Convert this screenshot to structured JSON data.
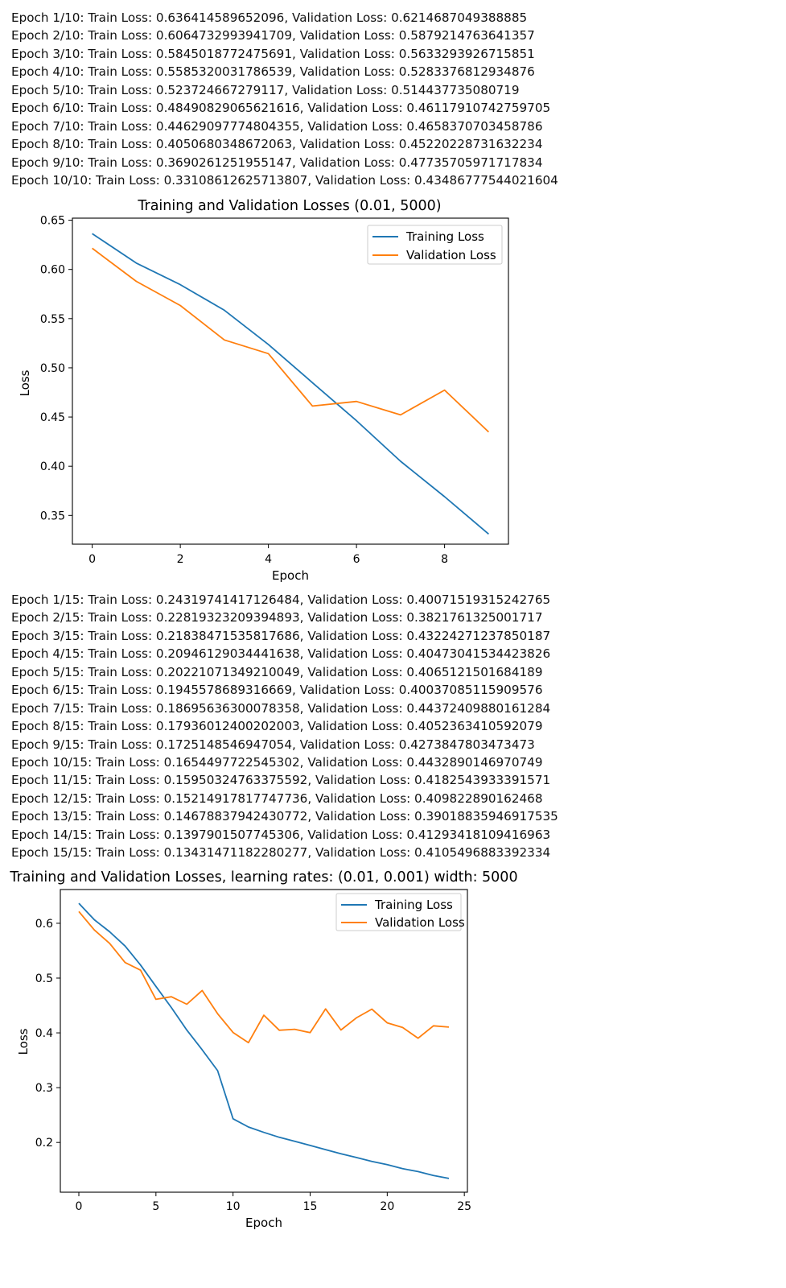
{
  "logs": [
    {
      "lines": [
        "Epoch 1/10: Train Loss: 0.636414589652096, Validation Loss: 0.6214687049388885",
        "Epoch 2/10: Train Loss: 0.6064732993941709, Validation Loss: 0.5879214763641357",
        "Epoch 3/10: Train Loss: 0.5845018772475691, Validation Loss: 0.5633293926715851",
        "Epoch 4/10: Train Loss: 0.5585320031786539, Validation Loss: 0.5283376812934876",
        "Epoch 5/10: Train Loss: 0.523724667279117, Validation Loss: 0.514437735080719",
        "Epoch 6/10: Train Loss: 0.48490829065621616, Validation Loss: 0.46117910742759705",
        "Epoch 7/10: Train Loss: 0.44629097774804355, Validation Loss: 0.4658370703458786",
        "Epoch 8/10: Train Loss: 0.4050680348672063, Validation Loss: 0.45220228731632234",
        "Epoch 9/10: Train Loss: 0.3690261251955147, Validation Loss: 0.47735705971717834",
        "Epoch 10/10: Train Loss: 0.33108612625713807, Validation Loss: 0.43486777544021604"
      ]
    },
    {
      "lines": [
        "Epoch 1/15: Train Loss: 0.24319741417126484, Validation Loss: 0.40071519315242765",
        "Epoch 2/15: Train Loss: 0.22819323209394893, Validation Loss: 0.3821761325001717",
        "Epoch 3/15: Train Loss: 0.21838471535817686, Validation Loss: 0.43224271237850187",
        "Epoch 4/15: Train Loss: 0.20946129034441638, Validation Loss: 0.40473041534423826",
        "Epoch 5/15: Train Loss: 0.20221071349210049, Validation Loss: 0.4065121501684189",
        "Epoch 6/15: Train Loss: 0.1945578689316669, Validation Loss: 0.40037085115909576",
        "Epoch 7/15: Train Loss: 0.18695636300078358, Validation Loss: 0.44372409880161284",
        "Epoch 8/15: Train Loss: 0.17936012400202003, Validation Loss: 0.4052363410592079",
        "Epoch 9/15: Train Loss: 0.1725148546947054, Validation Loss: 0.4273847803473473",
        "Epoch 10/15: Train Loss: 0.1654497722545302, Validation Loss: 0.4432890146970749",
        "Epoch 11/15: Train Loss: 0.15950324763375592, Validation Loss: 0.4182543933391571",
        "Epoch 12/15: Train Loss: 0.15214917817747736, Validation Loss: 0.409822890162468",
        "Epoch 13/15: Train Loss: 0.14678837942430772, Validation Loss: 0.39018835946917535",
        "Epoch 14/15: Train Loss: 0.1397901507745306, Validation Loss: 0.41293418109416963",
        "Epoch 15/15: Train Loss: 0.13431471182280277, Validation Loss: 0.4105496883392334"
      ]
    }
  ],
  "chart_data": [
    {
      "type": "line",
      "title": "Training and Validation Losses (0.01, 5000)",
      "xlabel": "Epoch",
      "ylabel": "Loss",
      "xlim": [
        -0.45,
        9.45
      ],
      "ylim": [
        0.3208,
        0.6521
      ],
      "xticks": [
        0,
        2,
        4,
        6,
        8
      ],
      "yticks": [
        0.35,
        0.4,
        0.45,
        0.5,
        0.55,
        0.6,
        0.65
      ],
      "ytick_labels": [
        "0.35",
        "0.40",
        "0.45",
        "0.50",
        "0.55",
        "0.60",
        "0.65"
      ],
      "legend_position": "top-right",
      "x": [
        0,
        1,
        2,
        3,
        4,
        5,
        6,
        7,
        8,
        9
      ],
      "series": [
        {
          "name": "Training Loss",
          "color": "#1f77b4",
          "values": [
            0.636414589652096,
            0.6064732993941709,
            0.5845018772475691,
            0.5585320031786539,
            0.523724667279117,
            0.48490829065621616,
            0.44629097774804355,
            0.4050680348672063,
            0.3690261251955147,
            0.33108612625713807
          ]
        },
        {
          "name": "Validation Loss",
          "color": "#ff7f0e",
          "values": [
            0.6214687049388885,
            0.5879214763641357,
            0.5633293926715851,
            0.5283376812934876,
            0.514437735080719,
            0.46117910742759705,
            0.4658370703458786,
            0.45220228731632234,
            0.47735705971717834,
            0.43486777544021604
          ]
        }
      ]
    },
    {
      "type": "line",
      "title": "Training and Validation Losses, learning rates: (0.01, 0.001) width: 5000",
      "xlabel": "Epoch",
      "ylabel": "Loss",
      "xlim": [
        -1.2,
        25.2
      ],
      "ylim": [
        0.1092,
        0.6616
      ],
      "xticks": [
        0,
        5,
        10,
        15,
        20,
        25
      ],
      "yticks": [
        0.2,
        0.3,
        0.4,
        0.5,
        0.6
      ],
      "ytick_labels": [
        "0.2",
        "0.3",
        "0.4",
        "0.5",
        "0.6"
      ],
      "legend_position": "top-right",
      "x": [
        0,
        1,
        2,
        3,
        4,
        5,
        6,
        7,
        8,
        9,
        10,
        11,
        12,
        13,
        14,
        15,
        16,
        17,
        18,
        19,
        20,
        21,
        22,
        23,
        24
      ],
      "series": [
        {
          "name": "Training Loss",
          "color": "#1f77b4",
          "values": [
            0.636414589652096,
            0.6064732993941709,
            0.5845018772475691,
            0.5585320031786539,
            0.523724667279117,
            0.48490829065621616,
            0.44629097774804355,
            0.4050680348672063,
            0.3690261251955147,
            0.33108612625713807,
            0.24319741417126484,
            0.22819323209394893,
            0.21838471535817686,
            0.20946129034441638,
            0.20221071349210049,
            0.1945578689316669,
            0.18695636300078358,
            0.17936012400202003,
            0.1725148546947054,
            0.1654497722545302,
            0.15950324763375592,
            0.15214917817747736,
            0.14678837942430772,
            0.1397901507745306,
            0.13431471182280277
          ]
        },
        {
          "name": "Validation Loss",
          "color": "#ff7f0e",
          "values": [
            0.6214687049388885,
            0.5879214763641357,
            0.5633293926715851,
            0.5283376812934876,
            0.514437735080719,
            0.46117910742759705,
            0.4658370703458786,
            0.45220228731632234,
            0.47735705971717834,
            0.43486777544021604,
            0.40071519315242765,
            0.3821761325001717,
            0.43224271237850187,
            0.40473041534423826,
            0.4065121501684189,
            0.40037085115909576,
            0.44372409880161284,
            0.4052363410592079,
            0.4273847803473473,
            0.4432890146970749,
            0.4182543933391571,
            0.409822890162468,
            0.39018835946917535,
            0.41293418109416963,
            0.4105496883392334
          ]
        }
      ]
    }
  ]
}
